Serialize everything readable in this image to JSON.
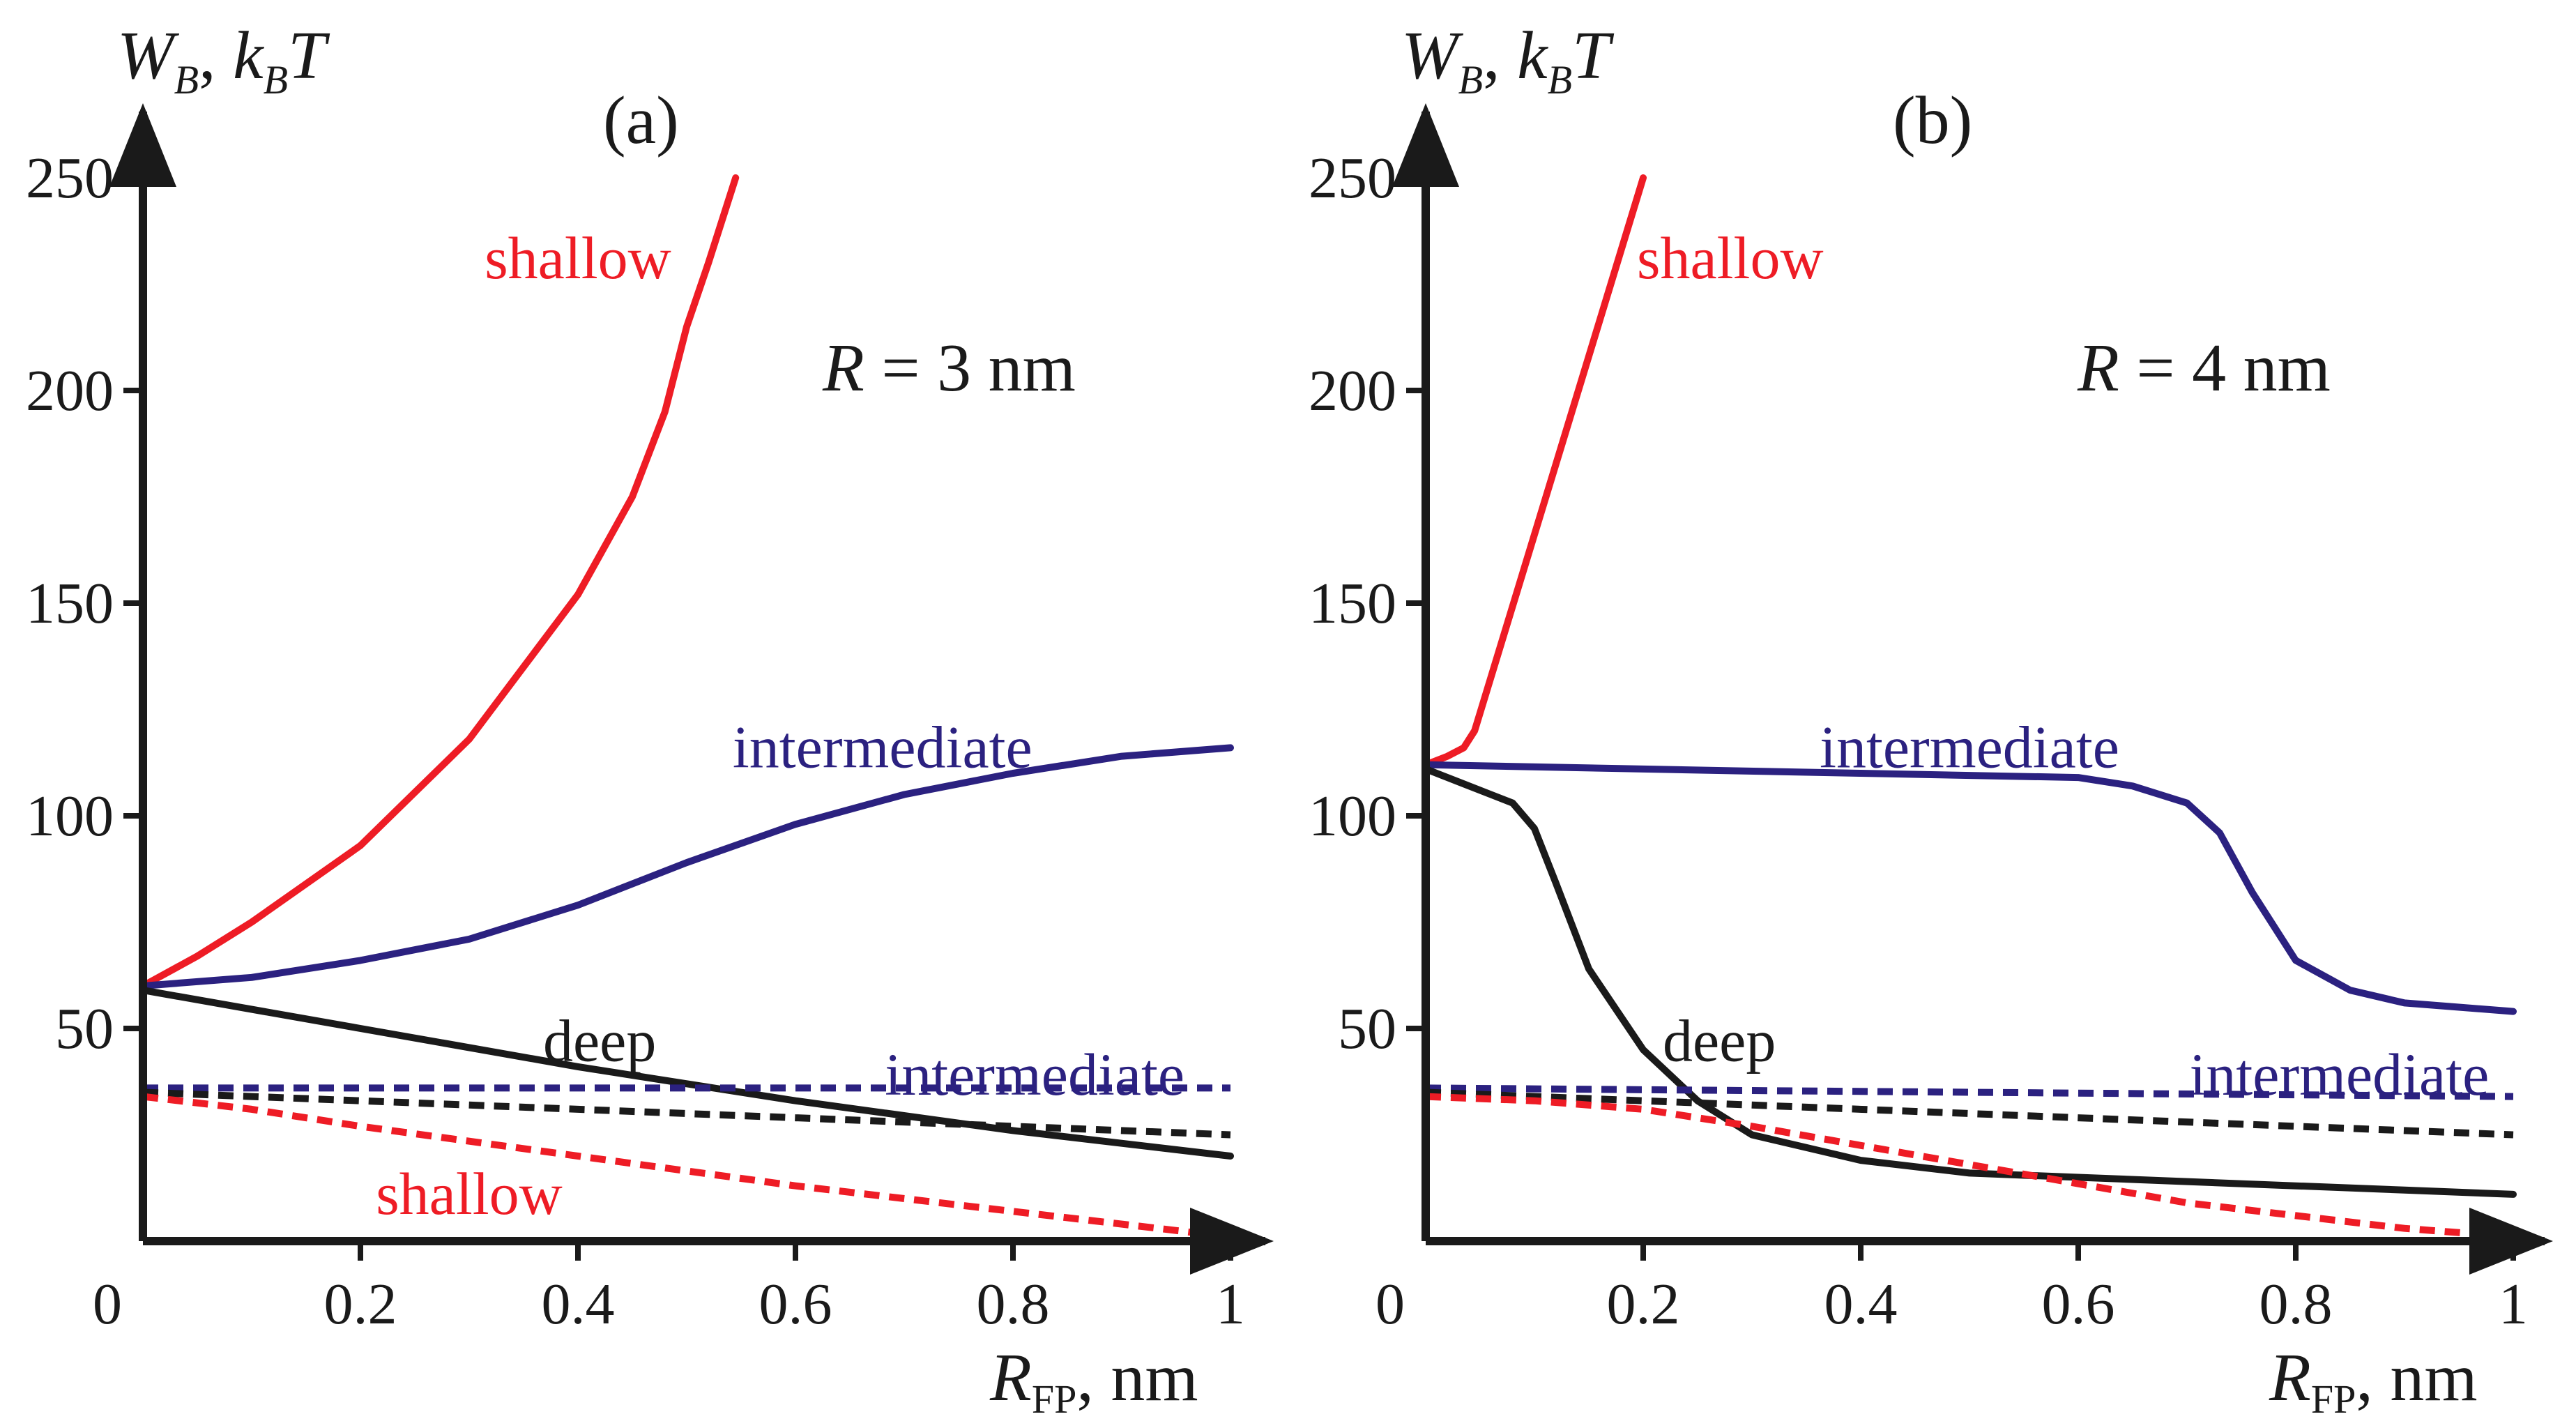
{
  "colors": {
    "shallow": "#ee1c25",
    "intermediate": "#2b2180",
    "deep": "#1a1a1a",
    "axis": "#1a1a1a"
  },
  "axis_labels": {
    "y_main": "W",
    "y_sub": "B",
    "y_unit_sep": ", ",
    "y_k": "k",
    "y_ksub": "B",
    "y_T": "T",
    "x_main": "R",
    "x_sub": "FP",
    "x_unit": ", nm"
  },
  "chart_data": [
    {
      "type": "line",
      "panel_label": "(a)",
      "annotation": {
        "var": "R",
        "text": " = 3 nm"
      },
      "xlim": [
        0,
        1
      ],
      "ylim": [
        0,
        250
      ],
      "xticks": [
        0.2,
        0.4,
        0.6,
        0.8,
        1
      ],
      "xtick_labels": [
        "0.2",
        "0.4",
        "0.6",
        "0.8",
        "1"
      ],
      "yticks": [
        50,
        100,
        150,
        200,
        250
      ],
      "ytick_labels": [
        "50",
        "100",
        "150",
        "200",
        "250"
      ],
      "origin_label": "0",
      "series": [
        {
          "name": "shallow",
          "style": "solid",
          "color": "shallow",
          "x": [
            0,
            0.05,
            0.1,
            0.2,
            0.3,
            0.4,
            0.45,
            0.48,
            0.5,
            0.52,
            0.535,
            0.545
          ],
          "y": [
            60,
            67,
            75,
            93,
            118,
            152,
            175,
            195,
            215,
            230,
            242,
            250
          ]
        },
        {
          "name": "intermediate",
          "style": "solid",
          "color": "intermediate",
          "x": [
            0,
            0.1,
            0.2,
            0.3,
            0.4,
            0.5,
            0.6,
            0.7,
            0.8,
            0.9,
            1.0
          ],
          "y": [
            60,
            62,
            66,
            71,
            79,
            89,
            98,
            105,
            110,
            114,
            116
          ]
        },
        {
          "name": "deep",
          "style": "solid",
          "color": "deep",
          "x": [
            0,
            0.2,
            0.4,
            0.6,
            0.8,
            1.0
          ],
          "y": [
            59,
            50,
            41,
            33,
            26,
            20
          ]
        },
        {
          "name": "intermediate",
          "style": "dashed",
          "color": "intermediate",
          "x": [
            0,
            0.5,
            1.0
          ],
          "y": [
            36,
            36,
            36
          ]
        },
        {
          "name": "deep",
          "style": "dashed",
          "color": "deep",
          "x": [
            0,
            0.5,
            1.0
          ],
          "y": [
            35,
            30,
            25
          ]
        },
        {
          "name": "shallow",
          "style": "dashed",
          "color": "shallow",
          "x": [
            0,
            0.1,
            0.2,
            0.4,
            0.6,
            0.8,
            1.0
          ],
          "y": [
            34,
            31,
            27,
            20,
            13,
            7,
            1
          ]
        }
      ],
      "labels": [
        {
          "text": "shallow",
          "color": "shallow",
          "x": 0.4,
          "y": 231
        },
        {
          "text": "intermediate",
          "color": "intermediate",
          "x": 0.68,
          "y": 116
        },
        {
          "text": "deep",
          "color": "deep",
          "x": 0.42,
          "y": 47
        },
        {
          "text": "intermediate",
          "color": "intermediate",
          "x": 0.82,
          "y": 39
        },
        {
          "text": "shallow",
          "color": "shallow",
          "x": 0.3,
          "y": 11
        }
      ]
    },
    {
      "type": "line",
      "panel_label": "(b)",
      "annotation": {
        "var": "R",
        "text": " = 4 nm"
      },
      "xlim": [
        0,
        1
      ],
      "ylim": [
        0,
        250
      ],
      "xticks": [
        0.2,
        0.4,
        0.6,
        0.8,
        1
      ],
      "xtick_labels": [
        "0.2",
        "0.4",
        "0.6",
        "0.8",
        "1"
      ],
      "yticks": [
        50,
        100,
        150,
        200,
        250
      ],
      "ytick_labels": [
        "50",
        "100",
        "150",
        "200",
        "250"
      ],
      "origin_label": "0",
      "series": [
        {
          "name": "shallow",
          "style": "solid",
          "color": "shallow",
          "x": [
            0,
            0.02,
            0.035,
            0.045,
            0.2
          ],
          "y": [
            112,
            114,
            116,
            120,
            250
          ]
        },
        {
          "name": "intermediate",
          "style": "solid",
          "color": "intermediate",
          "x": [
            0,
            0.2,
            0.4,
            0.6,
            0.65,
            0.7,
            0.73,
            0.76,
            0.8,
            0.85,
            0.9,
            0.95,
            1.0
          ],
          "y": [
            112,
            111,
            110,
            109,
            107,
            103,
            96,
            82,
            66,
            59,
            56,
            55,
            54
          ]
        },
        {
          "name": "deep",
          "style": "solid",
          "color": "deep",
          "x": [
            0,
            0.03,
            0.06,
            0.08,
            0.1,
            0.12,
            0.15,
            0.2,
            0.25,
            0.3,
            0.4,
            0.5,
            0.6,
            0.7,
            0.8,
            0.9,
            1.0
          ],
          "y": [
            111,
            108,
            105,
            103,
            97,
            84,
            64,
            45,
            33,
            25,
            19,
            16,
            15,
            14,
            13,
            12,
            11
          ]
        },
        {
          "name": "intermediate",
          "style": "dashed",
          "color": "intermediate",
          "x": [
            0,
            0.5,
            1.0
          ],
          "y": [
            36,
            35,
            34
          ]
        },
        {
          "name": "deep",
          "style": "dashed",
          "color": "deep",
          "x": [
            0,
            0.5,
            1.0
          ],
          "y": [
            35,
            30,
            25
          ]
        },
        {
          "name": "shallow",
          "style": "dashed",
          "color": "shallow",
          "x": [
            0,
            0.1,
            0.2,
            0.3,
            0.5,
            0.7,
            0.9,
            1.0
          ],
          "y": [
            34,
            33,
            31,
            27,
            18,
            9,
            3,
            1
          ]
        }
      ],
      "labels": [
        {
          "text": "shallow",
          "color": "shallow",
          "x": 0.28,
          "y": 231
        },
        {
          "text": "intermediate",
          "color": "intermediate",
          "x": 0.5,
          "y": 116
        },
        {
          "text": "deep",
          "color": "deep",
          "x": 0.27,
          "y": 47
        },
        {
          "text": "intermediate",
          "color": "intermediate",
          "x": 0.84,
          "y": 39
        }
      ]
    }
  ]
}
